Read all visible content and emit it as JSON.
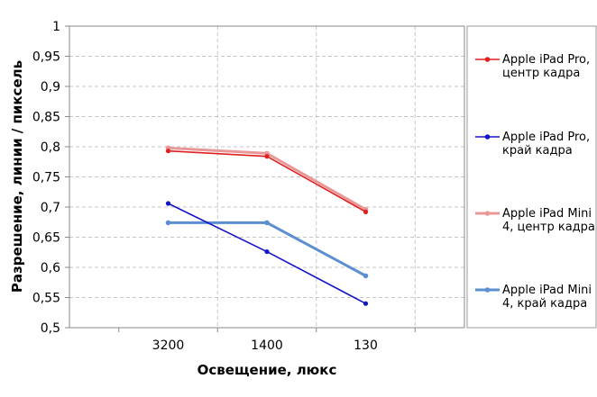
{
  "chart_data": {
    "type": "line",
    "title": "",
    "xlabel": "Освещение,  люкс",
    "ylabel": "Разрешение,  линии / пиксель",
    "categories": [
      "3200",
      "1400",
      "130"
    ],
    "ylim": [
      0.5,
      1
    ],
    "yticks": [
      "0,5",
      "0,55",
      "0,6",
      "0,65",
      "0,7",
      "0,75",
      "0,8",
      "0,85",
      "0,9",
      "0,95",
      "1"
    ],
    "grid": true,
    "legend_position": "right",
    "series": [
      {
        "name": "Apple iPad Pro, центр кадра",
        "legend_lines": [
          "Apple iPad Pro,",
          "центр кадра"
        ],
        "color": "#e02020",
        "values": [
          0.793,
          0.784,
          0.692
        ]
      },
      {
        "name": "Apple iPad Pro, край кадра",
        "legend_lines": [
          "Apple iPad Pro,",
          "край кадра"
        ],
        "color": "#1414c8",
        "values": [
          0.706,
          0.626,
          0.54
        ]
      },
      {
        "name": "Apple iPad Mini 4, центр кадра",
        "legend_lines": [
          "Apple iPad Mini",
          "4, центр кадра"
        ],
        "color": "#e89898",
        "values": [
          0.798,
          0.789,
          0.696
        ]
      },
      {
        "name": "Apple iPad Mini 4, край кадра",
        "legend_lines": [
          "Apple iPad Mini",
          "4, край кадра"
        ],
        "color": "#5b8fd0",
        "values": [
          0.674,
          0.674,
          0.586
        ]
      }
    ]
  }
}
